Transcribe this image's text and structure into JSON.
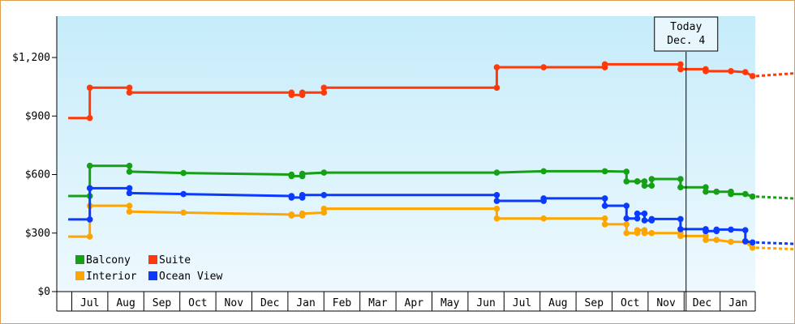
{
  "chart_data": {
    "type": "line",
    "title": "",
    "xlabel": "",
    "ylabel": "",
    "ylim": [
      0,
      1200
    ],
    "y_ticks": [
      "$0",
      "$300",
      "$600",
      "$900",
      "$1,200"
    ],
    "y_tick_values": [
      0,
      300,
      600,
      900,
      1200
    ],
    "x_months": [
      "Jul",
      "Aug",
      "Sep",
      "Oct",
      "Nov",
      "Dec",
      "Jan",
      "Feb",
      "Mar",
      "Apr",
      "May",
      "Jun",
      "Jul",
      "Aug",
      "Sep",
      "Oct",
      "Nov",
      "Dec",
      "Jan"
    ],
    "x_domain_months": [
      -0.4,
      19.3
    ],
    "grid": false,
    "legend_position": "bottom-left",
    "today": {
      "line1": "Today",
      "line2": "Dec. 4",
      "x": 17.1
    },
    "series": [
      {
        "name": "Balcony",
        "color": "#16a016",
        "points": [
          [
            -0.1,
            490
          ],
          [
            0.5,
            490
          ],
          [
            0.5,
            645
          ],
          [
            1.6,
            645
          ],
          [
            1.6,
            615
          ],
          [
            3.1,
            608
          ],
          [
            6.1,
            600
          ],
          [
            6.1,
            592
          ],
          [
            6.4,
            592
          ],
          [
            6.4,
            604
          ],
          [
            7.0,
            610
          ],
          [
            11.8,
            610
          ],
          [
            13.1,
            617
          ],
          [
            14.8,
            617
          ],
          [
            15.4,
            615
          ],
          [
            15.4,
            565
          ],
          [
            15.7,
            565
          ],
          [
            15.7,
            565
          ],
          [
            15.9,
            565
          ],
          [
            15.9,
            543
          ],
          [
            16.1,
            543
          ],
          [
            16.1,
            577
          ],
          [
            16.9,
            577
          ],
          [
            16.9,
            535
          ],
          [
            17.6,
            535
          ],
          [
            17.6,
            512
          ],
          [
            17.9,
            512
          ],
          [
            17.9,
            512
          ],
          [
            18.3,
            512
          ],
          [
            18.3,
            500
          ],
          [
            18.7,
            500
          ],
          [
            18.9,
            487
          ]
        ],
        "forecast": [
          [
            19.0,
            487
          ],
          [
            20.0,
            478
          ],
          [
            21.2,
            472
          ]
        ]
      },
      {
        "name": "Suite",
        "color": "#ff3a0a",
        "points": [
          [
            -0.1,
            890
          ],
          [
            0.5,
            890
          ],
          [
            0.5,
            1045
          ],
          [
            1.6,
            1045
          ],
          [
            1.6,
            1020
          ],
          [
            6.1,
            1020
          ],
          [
            6.1,
            1008
          ],
          [
            6.4,
            1008
          ],
          [
            6.4,
            1020
          ],
          [
            7.0,
            1020
          ],
          [
            7.0,
            1045
          ],
          [
            11.8,
            1045
          ],
          [
            11.8,
            1150
          ],
          [
            13.1,
            1150
          ],
          [
            14.8,
            1150
          ],
          [
            14.8,
            1165
          ],
          [
            16.9,
            1165
          ],
          [
            16.9,
            1140
          ],
          [
            17.6,
            1140
          ],
          [
            17.6,
            1130
          ],
          [
            18.3,
            1130
          ],
          [
            18.7,
            1125
          ],
          [
            18.9,
            1105
          ]
        ],
        "forecast": [
          [
            19.0,
            1105
          ],
          [
            20.0,
            1118
          ],
          [
            21.2,
            1135
          ]
        ]
      },
      {
        "name": "Interior",
        "color": "#ffa500",
        "points": [
          [
            -0.1,
            282
          ],
          [
            0.5,
            282
          ],
          [
            0.5,
            440
          ],
          [
            1.6,
            440
          ],
          [
            1.6,
            410
          ],
          [
            3.1,
            405
          ],
          [
            6.1,
            395
          ],
          [
            6.1,
            390
          ],
          [
            6.4,
            390
          ],
          [
            6.4,
            400
          ],
          [
            7.0,
            405
          ],
          [
            7.0,
            425
          ],
          [
            11.8,
            425
          ],
          [
            11.8,
            375
          ],
          [
            13.1,
            375
          ],
          [
            14.8,
            375
          ],
          [
            14.8,
            345
          ],
          [
            15.4,
            345
          ],
          [
            15.4,
            300
          ],
          [
            15.7,
            300
          ],
          [
            15.7,
            315
          ],
          [
            15.9,
            315
          ],
          [
            15.9,
            300
          ],
          [
            16.1,
            300
          ],
          [
            16.1,
            300
          ],
          [
            16.9,
            300
          ],
          [
            16.9,
            285
          ],
          [
            17.6,
            285
          ],
          [
            17.6,
            265
          ],
          [
            17.9,
            265
          ],
          [
            18.3,
            255
          ],
          [
            18.7,
            255
          ],
          [
            18.9,
            225
          ]
        ],
        "forecast": [
          [
            19.0,
            225
          ],
          [
            20.0,
            218
          ],
          [
            21.2,
            210
          ]
        ]
      },
      {
        "name": "Ocean View",
        "color": "#0a3aff",
        "points": [
          [
            -0.1,
            370
          ],
          [
            0.5,
            370
          ],
          [
            0.5,
            530
          ],
          [
            1.6,
            530
          ],
          [
            1.6,
            505
          ],
          [
            3.1,
            500
          ],
          [
            6.1,
            490
          ],
          [
            6.1,
            482
          ],
          [
            6.4,
            482
          ],
          [
            6.4,
            495
          ],
          [
            7.0,
            495
          ],
          [
            11.8,
            495
          ],
          [
            11.8,
            465
          ],
          [
            13.1,
            465
          ],
          [
            13.1,
            478
          ],
          [
            14.8,
            478
          ],
          [
            14.8,
            440
          ],
          [
            15.4,
            440
          ],
          [
            15.4,
            375
          ],
          [
            15.7,
            375
          ],
          [
            15.7,
            400
          ],
          [
            15.9,
            400
          ],
          [
            15.9,
            365
          ],
          [
            16.1,
            365
          ],
          [
            16.1,
            372
          ],
          [
            16.9,
            372
          ],
          [
            16.9,
            320
          ],
          [
            17.6,
            320
          ],
          [
            17.6,
            310
          ],
          [
            17.9,
            310
          ],
          [
            17.9,
            318
          ],
          [
            18.3,
            318
          ],
          [
            18.7,
            315
          ],
          [
            18.7,
            258
          ],
          [
            18.9,
            252
          ]
        ],
        "forecast": [
          [
            19.0,
            252
          ],
          [
            20.0,
            245
          ],
          [
            21.2,
            233
          ]
        ]
      }
    ]
  }
}
